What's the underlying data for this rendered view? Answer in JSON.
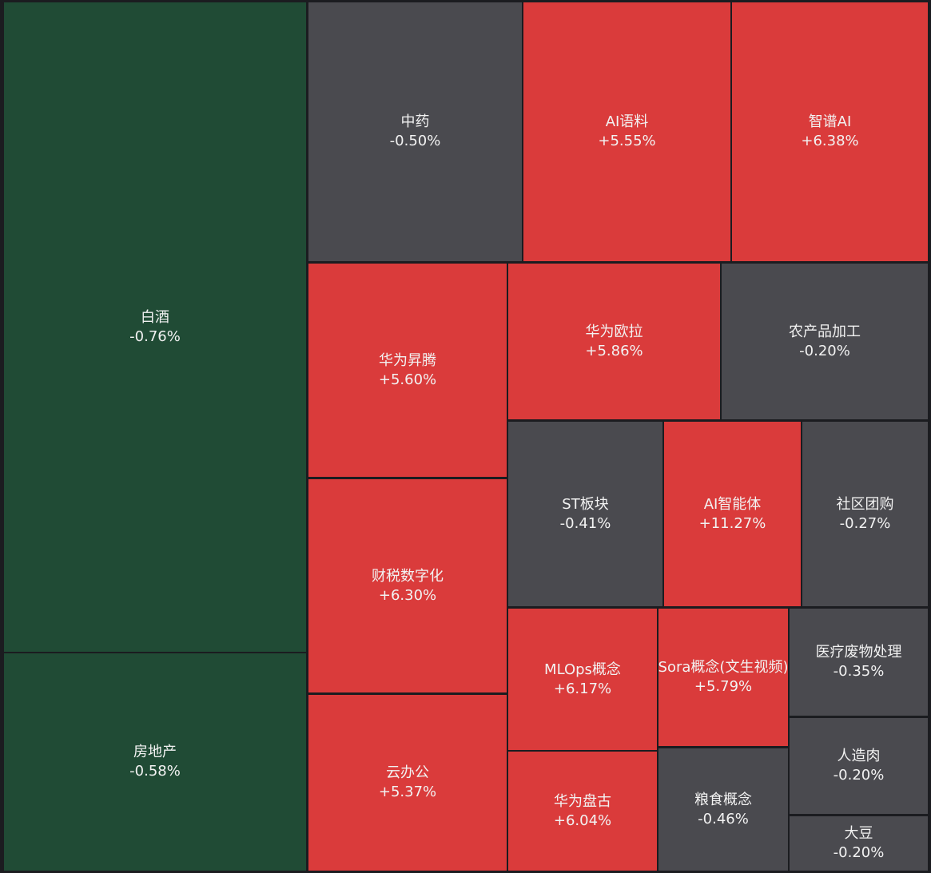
{
  "chart_data": {
    "type": "treemap",
    "colors": {
      "up": "#da3b3b",
      "flat_down": "#4a4a4f",
      "down": "#204b35",
      "background": "#1b1c20"
    },
    "items": [
      {
        "name": "白酒",
        "change": "-0.76%",
        "value": -0.76,
        "color": "down"
      },
      {
        "name": "房地产",
        "change": "-0.58%",
        "value": -0.58,
        "color": "down"
      },
      {
        "name": "中药",
        "change": "-0.50%",
        "value": -0.5,
        "color": "flat_down"
      },
      {
        "name": "AI语料",
        "change": "+5.55%",
        "value": 5.55,
        "color": "up"
      },
      {
        "name": "智谱AI",
        "change": "+6.38%",
        "value": 6.38,
        "color": "up"
      },
      {
        "name": "华为昇腾",
        "change": "+5.60%",
        "value": 5.6,
        "color": "up"
      },
      {
        "name": "华为欧拉",
        "change": "+5.86%",
        "value": 5.86,
        "color": "up"
      },
      {
        "name": "农产品加工",
        "change": "-0.20%",
        "value": -0.2,
        "color": "flat_down"
      },
      {
        "name": "财税数字化",
        "change": "+6.30%",
        "value": 6.3,
        "color": "up"
      },
      {
        "name": "ST板块",
        "change": "-0.41%",
        "value": -0.41,
        "color": "flat_down"
      },
      {
        "name": "AI智能体",
        "change": "+11.27%",
        "value": 11.27,
        "color": "up"
      },
      {
        "name": "社区团购",
        "change": "-0.27%",
        "value": -0.27,
        "color": "flat_down"
      },
      {
        "name": "MLOps概念",
        "change": "+6.17%",
        "value": 6.17,
        "color": "up"
      },
      {
        "name": "Sora概念(文生视频)",
        "change": "+5.79%",
        "value": 5.79,
        "color": "up"
      },
      {
        "name": "医疗废物处理",
        "change": "-0.35%",
        "value": -0.35,
        "color": "flat_down"
      },
      {
        "name": "云办公",
        "change": "+5.37%",
        "value": 5.37,
        "color": "up"
      },
      {
        "name": "华为盘古",
        "change": "+6.04%",
        "value": 6.04,
        "color": "up"
      },
      {
        "name": "粮食概念",
        "change": "-0.46%",
        "value": -0.46,
        "color": "flat_down"
      },
      {
        "name": "人造肉",
        "change": "-0.20%",
        "value": -0.2,
        "color": "flat_down"
      },
      {
        "name": "大豆",
        "change": "-0.20%",
        "value": -0.2,
        "color": "flat_down"
      }
    ]
  }
}
